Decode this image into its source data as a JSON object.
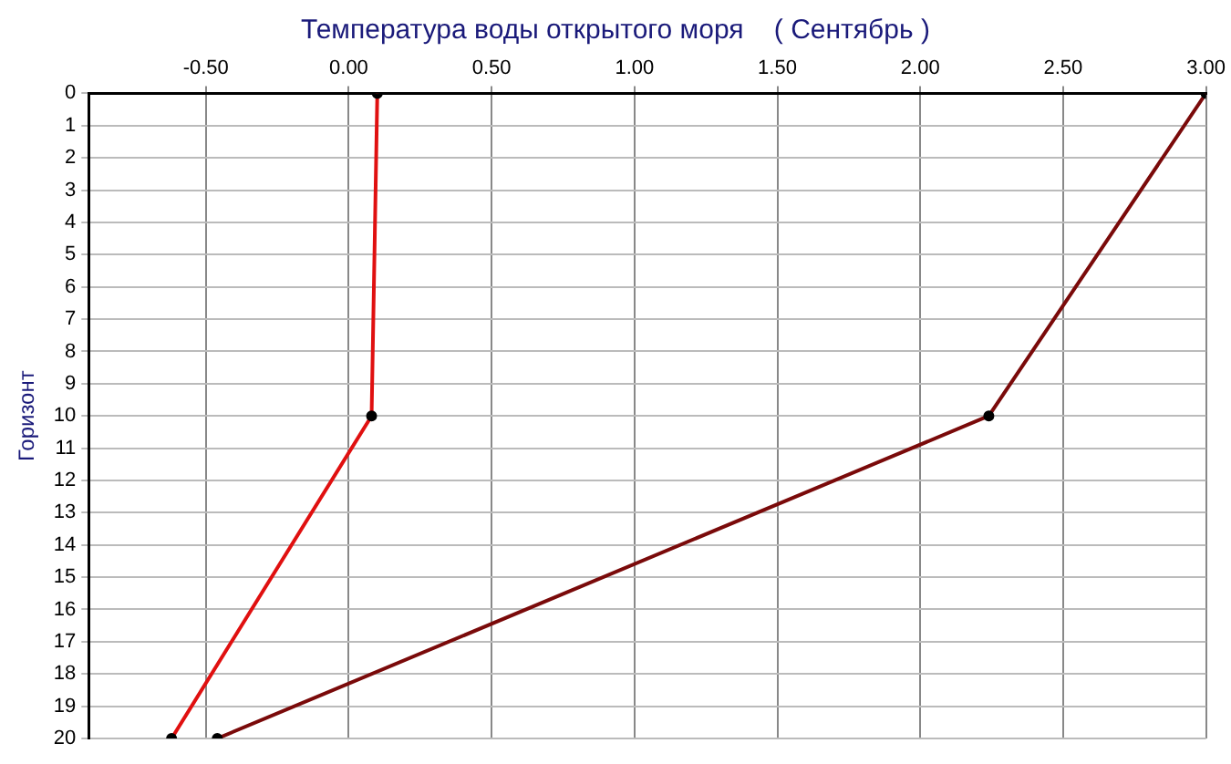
{
  "chart_data": {
    "type": "line",
    "title": "Температура воды открытого моря    ( Сентябрь )",
    "ylabel": "Горизонт",
    "series": [
      {
        "color": "#e01010",
        "x": [
          0.1,
          0.08,
          -0.62
        ],
        "values": [
          0,
          10,
          20
        ]
      },
      {
        "color": "#7a0a0a",
        "x": [
          3.0,
          2.24,
          -0.46
        ],
        "values": [
          0,
          10,
          20
        ]
      }
    ],
    "xlim": [
      -0.91,
      3.0
    ],
    "xticks": [
      {
        "value": -0.5,
        "label": "-0.50"
      },
      {
        "value": 0,
        "label": "0.00"
      },
      {
        "value": 0.5,
        "label": "0.50"
      },
      {
        "value": 1,
        "label": "1.00"
      },
      {
        "value": 1.5,
        "label": "1.50"
      },
      {
        "value": 2,
        "label": "2.00"
      },
      {
        "value": 2.5,
        "label": "2.50"
      },
      {
        "value": 3,
        "label": "3.00"
      }
    ],
    "ylim": [
      20,
      0
    ],
    "yticks": [
      0,
      1,
      2,
      3,
      4,
      5,
      6,
      7,
      8,
      9,
      10,
      11,
      12,
      13,
      14,
      15,
      16,
      17,
      18,
      19,
      20
    ],
    "grid": true,
    "marker": "circle",
    "line_style": "solid"
  }
}
